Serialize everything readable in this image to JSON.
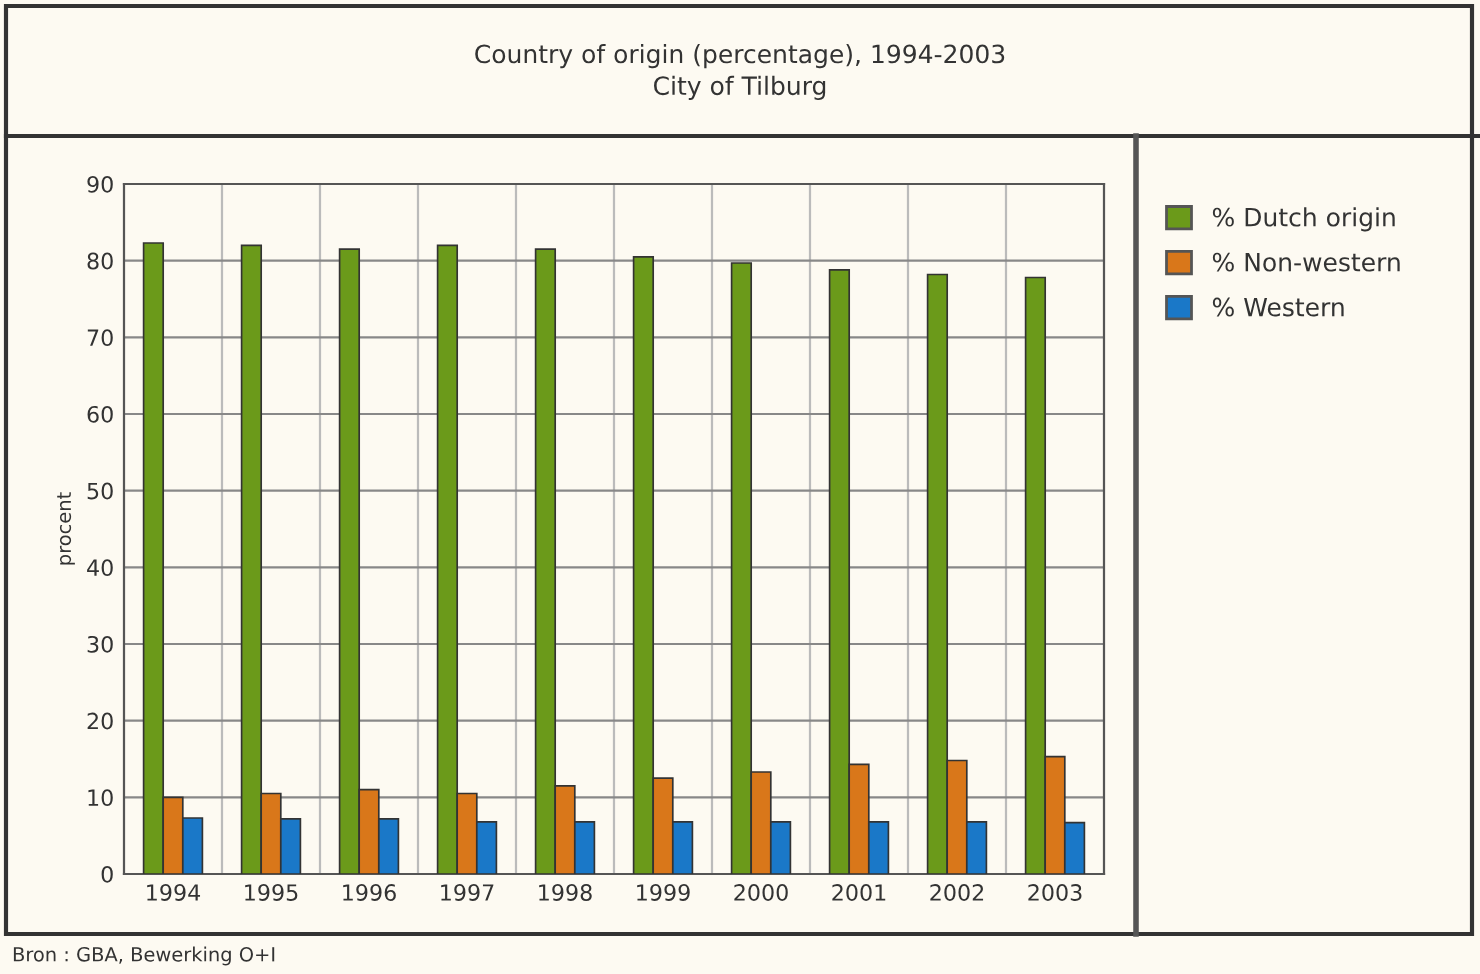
{
  "chart_data": {
    "type": "bar",
    "title": "Country of origin (percentage), 1994-2003\nCity of Tilburg",
    "categories": [
      "1994",
      "1995",
      "1996",
      "1997",
      "1998",
      "1999",
      "2000",
      "2001",
      "2002",
      "2003"
    ],
    "series": [
      {
        "name": "% Dutch origin",
        "color": "#6b9a1a",
        "values": [
          82.3,
          82,
          81.5,
          82,
          81.5,
          80.5,
          79.7,
          78.8,
          78.2,
          77.8
        ]
      },
      {
        "name": "% Non-western",
        "color": "#d9771a",
        "values": [
          10,
          10.5,
          11,
          10.5,
          11.5,
          12.5,
          13.3,
          14.3,
          14.8,
          15.3
        ]
      },
      {
        "name": "% Western",
        "color": "#1a78c8",
        "values": [
          7.3,
          7.2,
          7.2,
          6.8,
          6.8,
          6.8,
          6.8,
          6.8,
          6.8,
          6.7
        ]
      }
    ],
    "ylabel": "procent",
    "ylim": [
      0,
      90
    ],
    "yticks": [
      0,
      10,
      20,
      30,
      40,
      50,
      60,
      70,
      80,
      90
    ],
    "grid": true,
    "legend": "right",
    "annotations": [
      "Bron : GBA, Bewerking O+I"
    ]
  }
}
